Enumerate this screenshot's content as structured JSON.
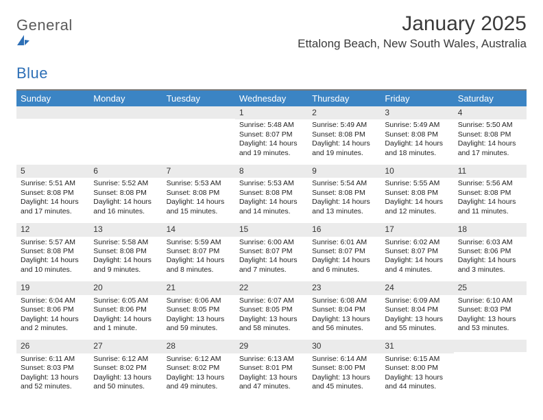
{
  "brand": {
    "part1": "General",
    "part2": "Blue"
  },
  "title": "January 2025",
  "location": "Ettalong Beach, New South Wales, Australia",
  "colors": {
    "header_bg": "#3b84c4",
    "header_fg": "#ffffff",
    "daynum_bg": "#ebebeb",
    "rule": "#7a7a7a",
    "brand_gray": "#5a5a5a",
    "brand_blue": "#2d6fb6"
  },
  "day_names": [
    "Sunday",
    "Monday",
    "Tuesday",
    "Wednesday",
    "Thursday",
    "Friday",
    "Saturday"
  ],
  "weeks": [
    [
      {
        "n": "",
        "sunrise": "",
        "sunset": "",
        "daylight": ""
      },
      {
        "n": "",
        "sunrise": "",
        "sunset": "",
        "daylight": ""
      },
      {
        "n": "",
        "sunrise": "",
        "sunset": "",
        "daylight": ""
      },
      {
        "n": "1",
        "sunrise": "Sunrise: 5:48 AM",
        "sunset": "Sunset: 8:07 PM",
        "daylight": "Daylight: 14 hours and 19 minutes."
      },
      {
        "n": "2",
        "sunrise": "Sunrise: 5:49 AM",
        "sunset": "Sunset: 8:08 PM",
        "daylight": "Daylight: 14 hours and 19 minutes."
      },
      {
        "n": "3",
        "sunrise": "Sunrise: 5:49 AM",
        "sunset": "Sunset: 8:08 PM",
        "daylight": "Daylight: 14 hours and 18 minutes."
      },
      {
        "n": "4",
        "sunrise": "Sunrise: 5:50 AM",
        "sunset": "Sunset: 8:08 PM",
        "daylight": "Daylight: 14 hours and 17 minutes."
      }
    ],
    [
      {
        "n": "5",
        "sunrise": "Sunrise: 5:51 AM",
        "sunset": "Sunset: 8:08 PM",
        "daylight": "Daylight: 14 hours and 17 minutes."
      },
      {
        "n": "6",
        "sunrise": "Sunrise: 5:52 AM",
        "sunset": "Sunset: 8:08 PM",
        "daylight": "Daylight: 14 hours and 16 minutes."
      },
      {
        "n": "7",
        "sunrise": "Sunrise: 5:53 AM",
        "sunset": "Sunset: 8:08 PM",
        "daylight": "Daylight: 14 hours and 15 minutes."
      },
      {
        "n": "8",
        "sunrise": "Sunrise: 5:53 AM",
        "sunset": "Sunset: 8:08 PM",
        "daylight": "Daylight: 14 hours and 14 minutes."
      },
      {
        "n": "9",
        "sunrise": "Sunrise: 5:54 AM",
        "sunset": "Sunset: 8:08 PM",
        "daylight": "Daylight: 14 hours and 13 minutes."
      },
      {
        "n": "10",
        "sunrise": "Sunrise: 5:55 AM",
        "sunset": "Sunset: 8:08 PM",
        "daylight": "Daylight: 14 hours and 12 minutes."
      },
      {
        "n": "11",
        "sunrise": "Sunrise: 5:56 AM",
        "sunset": "Sunset: 8:08 PM",
        "daylight": "Daylight: 14 hours and 11 minutes."
      }
    ],
    [
      {
        "n": "12",
        "sunrise": "Sunrise: 5:57 AM",
        "sunset": "Sunset: 8:08 PM",
        "daylight": "Daylight: 14 hours and 10 minutes."
      },
      {
        "n": "13",
        "sunrise": "Sunrise: 5:58 AM",
        "sunset": "Sunset: 8:08 PM",
        "daylight": "Daylight: 14 hours and 9 minutes."
      },
      {
        "n": "14",
        "sunrise": "Sunrise: 5:59 AM",
        "sunset": "Sunset: 8:07 PM",
        "daylight": "Daylight: 14 hours and 8 minutes."
      },
      {
        "n": "15",
        "sunrise": "Sunrise: 6:00 AM",
        "sunset": "Sunset: 8:07 PM",
        "daylight": "Daylight: 14 hours and 7 minutes."
      },
      {
        "n": "16",
        "sunrise": "Sunrise: 6:01 AM",
        "sunset": "Sunset: 8:07 PM",
        "daylight": "Daylight: 14 hours and 6 minutes."
      },
      {
        "n": "17",
        "sunrise": "Sunrise: 6:02 AM",
        "sunset": "Sunset: 8:07 PM",
        "daylight": "Daylight: 14 hours and 4 minutes."
      },
      {
        "n": "18",
        "sunrise": "Sunrise: 6:03 AM",
        "sunset": "Sunset: 8:06 PM",
        "daylight": "Daylight: 14 hours and 3 minutes."
      }
    ],
    [
      {
        "n": "19",
        "sunrise": "Sunrise: 6:04 AM",
        "sunset": "Sunset: 8:06 PM",
        "daylight": "Daylight: 14 hours and 2 minutes."
      },
      {
        "n": "20",
        "sunrise": "Sunrise: 6:05 AM",
        "sunset": "Sunset: 8:06 PM",
        "daylight": "Daylight: 14 hours and 1 minute."
      },
      {
        "n": "21",
        "sunrise": "Sunrise: 6:06 AM",
        "sunset": "Sunset: 8:05 PM",
        "daylight": "Daylight: 13 hours and 59 minutes."
      },
      {
        "n": "22",
        "sunrise": "Sunrise: 6:07 AM",
        "sunset": "Sunset: 8:05 PM",
        "daylight": "Daylight: 13 hours and 58 minutes."
      },
      {
        "n": "23",
        "sunrise": "Sunrise: 6:08 AM",
        "sunset": "Sunset: 8:04 PM",
        "daylight": "Daylight: 13 hours and 56 minutes."
      },
      {
        "n": "24",
        "sunrise": "Sunrise: 6:09 AM",
        "sunset": "Sunset: 8:04 PM",
        "daylight": "Daylight: 13 hours and 55 minutes."
      },
      {
        "n": "25",
        "sunrise": "Sunrise: 6:10 AM",
        "sunset": "Sunset: 8:03 PM",
        "daylight": "Daylight: 13 hours and 53 minutes."
      }
    ],
    [
      {
        "n": "26",
        "sunrise": "Sunrise: 6:11 AM",
        "sunset": "Sunset: 8:03 PM",
        "daylight": "Daylight: 13 hours and 52 minutes."
      },
      {
        "n": "27",
        "sunrise": "Sunrise: 6:12 AM",
        "sunset": "Sunset: 8:02 PM",
        "daylight": "Daylight: 13 hours and 50 minutes."
      },
      {
        "n": "28",
        "sunrise": "Sunrise: 6:12 AM",
        "sunset": "Sunset: 8:02 PM",
        "daylight": "Daylight: 13 hours and 49 minutes."
      },
      {
        "n": "29",
        "sunrise": "Sunrise: 6:13 AM",
        "sunset": "Sunset: 8:01 PM",
        "daylight": "Daylight: 13 hours and 47 minutes."
      },
      {
        "n": "30",
        "sunrise": "Sunrise: 6:14 AM",
        "sunset": "Sunset: 8:00 PM",
        "daylight": "Daylight: 13 hours and 45 minutes."
      },
      {
        "n": "31",
        "sunrise": "Sunrise: 6:15 AM",
        "sunset": "Sunset: 8:00 PM",
        "daylight": "Daylight: 13 hours and 44 minutes."
      },
      {
        "n": "",
        "sunrise": "",
        "sunset": "",
        "daylight": ""
      }
    ]
  ]
}
